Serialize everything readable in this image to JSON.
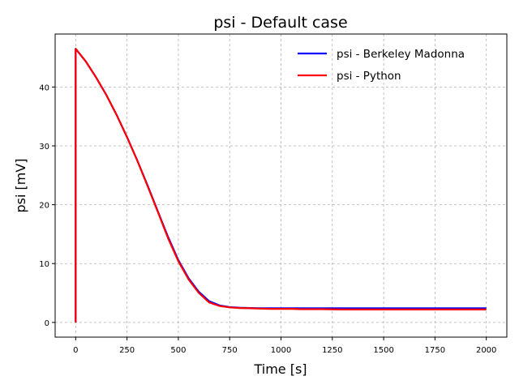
{
  "chart_data": {
    "type": "line",
    "title": "psi - Default case",
    "xlabel": "Time [s]",
    "ylabel": "psi [mV]",
    "xlim": [
      -100,
      2100
    ],
    "ylim": [
      -2.5,
      49
    ],
    "xticks": [
      0,
      250,
      500,
      750,
      1000,
      1250,
      1500,
      1750,
      2000
    ],
    "yticks": [
      0,
      10,
      20,
      30,
      40
    ],
    "grid": true,
    "legend_position": "top-right",
    "series": [
      {
        "name": "psi - Berkeley Madonna",
        "color": "#0000ff",
        "x": [
          0,
          0,
          50,
          100,
          150,
          200,
          250,
          300,
          350,
          400,
          450,
          500,
          550,
          600,
          650,
          700,
          750,
          800,
          850,
          900,
          950,
          1000,
          1050,
          1100,
          1150,
          1200,
          1300,
          1400,
          1500,
          1600,
          1700,
          1800,
          1900,
          2000
        ],
        "y": [
          0,
          46.5,
          44.3,
          41.6,
          38.6,
          35.2,
          31.5,
          27.5,
          23.3,
          18.9,
          14.5,
          10.6,
          7.5,
          5.2,
          3.6,
          2.9,
          2.6,
          2.5,
          2.45,
          2.4,
          2.4,
          2.4,
          2.4,
          2.4,
          2.4,
          2.4,
          2.4,
          2.4,
          2.4,
          2.4,
          2.4,
          2.4,
          2.4,
          2.4
        ]
      },
      {
        "name": "psi - Python",
        "color": "#ff0000",
        "x": [
          0,
          0,
          50,
          100,
          150,
          200,
          250,
          300,
          350,
          400,
          450,
          500,
          550,
          600,
          650,
          700,
          750,
          800,
          850,
          900,
          950,
          1000,
          1050,
          1100,
          1150,
          1200,
          1300,
          1400,
          1500,
          1600,
          1700,
          1800,
          1900,
          2000
        ],
        "y": [
          0,
          46.5,
          44.3,
          41.6,
          38.6,
          35.2,
          31.5,
          27.5,
          23.2,
          18.8,
          14.3,
          10.4,
          7.3,
          5.0,
          3.4,
          2.8,
          2.55,
          2.45,
          2.4,
          2.35,
          2.3,
          2.3,
          2.3,
          2.25,
          2.25,
          2.25,
          2.2,
          2.2,
          2.2,
          2.2,
          2.2,
          2.2,
          2.2,
          2.2
        ]
      }
    ]
  }
}
